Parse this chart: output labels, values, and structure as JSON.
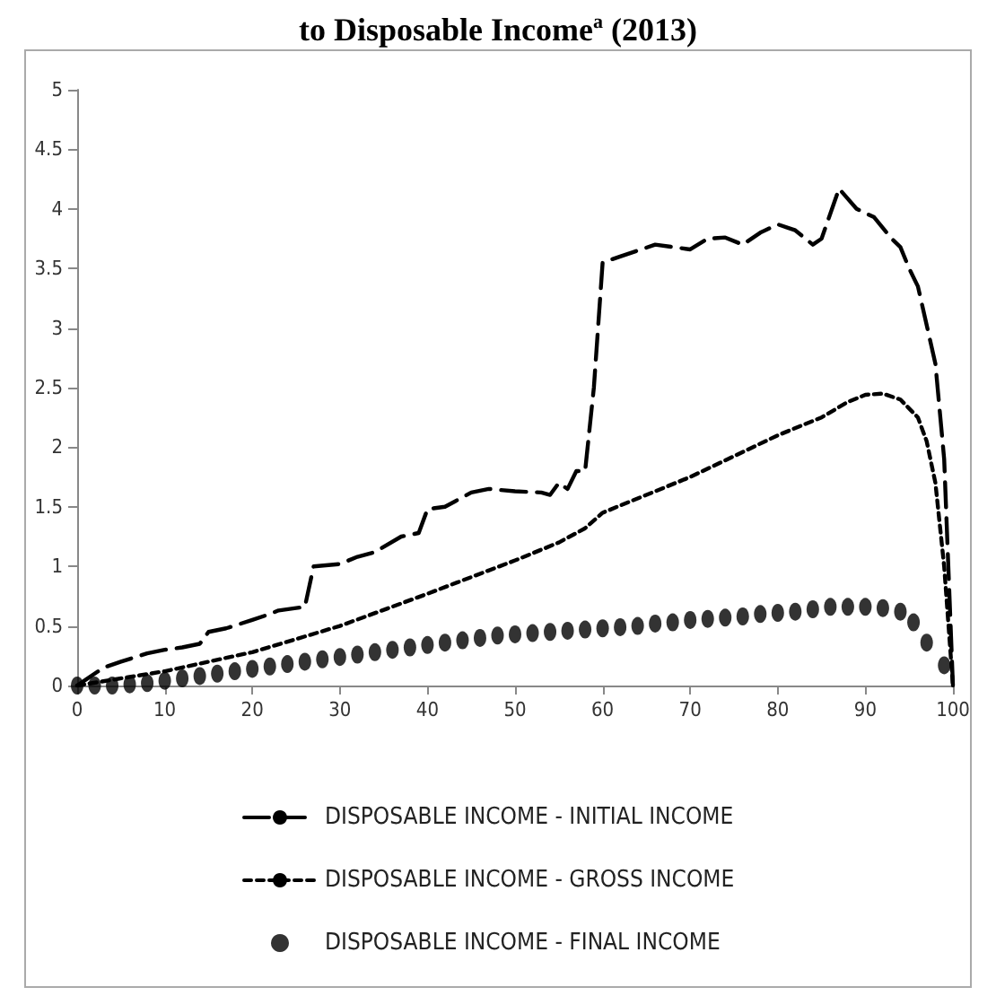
{
  "chart_data": {
    "type": "line",
    "title": "to Disposable Income$^{a}$ (2013)",
    "xlim": [
      0,
      100
    ],
    "xticks": [
      0,
      10,
      20,
      30,
      40,
      50,
      60,
      70,
      80,
      90,
      100
    ],
    "ylim": [
      0,
      5
    ],
    "yticks": [
      0,
      0.5,
      1,
      1.5,
      2,
      2.5,
      3,
      3.5,
      4,
      4.5,
      5
    ],
    "grid": false,
    "legend": "bottom",
    "marker": "none",
    "series": [
      {
        "name": "DISPOSABLE INCOME - INITIAL INCOME",
        "color": "#000000",
        "line_style": "dashed",
        "x": [
          0,
          1,
          3,
          5,
          8,
          10,
          12,
          14,
          15,
          17,
          20,
          22,
          23,
          25,
          26,
          27,
          30,
          32,
          34,
          37,
          39,
          40,
          42,
          45,
          47,
          50,
          53,
          54,
          55,
          56,
          57,
          58,
          59,
          60,
          62,
          64,
          66,
          68,
          70,
          72,
          74,
          76,
          78,
          80,
          82,
          84,
          85,
          87,
          89,
          91,
          93,
          94,
          95,
          96,
          98,
          99,
          100
        ],
        "values": [
          0,
          0.05,
          0.15,
          0.2,
          0.27,
          0.3,
          0.32,
          0.35,
          0.45,
          0.48,
          0.55,
          0.6,
          0.63,
          0.65,
          0.66,
          1.0,
          1.02,
          1.08,
          1.12,
          1.25,
          1.28,
          1.48,
          1.5,
          1.62,
          1.65,
          1.63,
          1.62,
          1.6,
          1.7,
          1.65,
          1.8,
          1.8,
          2.5,
          3.55,
          3.6,
          3.65,
          3.7,
          3.68,
          3.66,
          3.75,
          3.76,
          3.7,
          3.8,
          3.87,
          3.82,
          3.7,
          3.75,
          4.17,
          4.0,
          3.93,
          3.75,
          3.68,
          3.5,
          3.35,
          2.7,
          1.9,
          0
        ]
      },
      {
        "name": "DISPOSABLE INCOME - GROSS INCOME",
        "color": "#000000",
        "line_style": "dotted",
        "x": [
          0,
          10,
          20,
          30,
          40,
          50,
          55,
          58,
          60,
          70,
          80,
          85,
          88,
          90,
          92,
          94,
          96,
          97,
          98,
          99,
          100
        ],
        "values": [
          0,
          0.12,
          0.28,
          0.5,
          0.77,
          1.05,
          1.2,
          1.32,
          1.45,
          1.75,
          2.1,
          2.25,
          2.38,
          2.44,
          2.45,
          2.4,
          2.25,
          2.05,
          1.7,
          1.0,
          0
        ]
      },
      {
        "name": "DISPOSABLE INCOME - FINAL INCOME",
        "color": "#000000",
        "type": "scatter",
        "marker": "circle",
        "x": [
          0,
          2,
          4,
          6,
          8,
          10,
          12,
          14,
          16,
          18,
          20,
          22,
          24,
          26,
          28,
          30,
          32,
          34,
          36,
          38,
          40,
          42,
          44,
          46,
          48,
          50,
          52,
          54,
          56,
          58,
          60,
          62,
          64,
          66,
          68,
          70,
          72,
          74,
          76,
          78,
          80,
          82,
          84,
          86,
          88,
          90,
          92,
          94,
          95.5,
          97,
          99
        ],
        "values": [
          0,
          0,
          0,
          0.01,
          0.02,
          0.04,
          0.06,
          0.08,
          0.1,
          0.12,
          0.14,
          0.16,
          0.18,
          0.2,
          0.22,
          0.24,
          0.26,
          0.28,
          0.3,
          0.32,
          0.34,
          0.36,
          0.38,
          0.4,
          0.42,
          0.43,
          0.44,
          0.45,
          0.46,
          0.47,
          0.48,
          0.49,
          0.5,
          0.52,
          0.53,
          0.55,
          0.56,
          0.57,
          0.58,
          0.6,
          0.61,
          0.62,
          0.64,
          0.66,
          0.66,
          0.66,
          0.65,
          0.62,
          0.53,
          0.36,
          0.17
        ]
      }
    ]
  }
}
